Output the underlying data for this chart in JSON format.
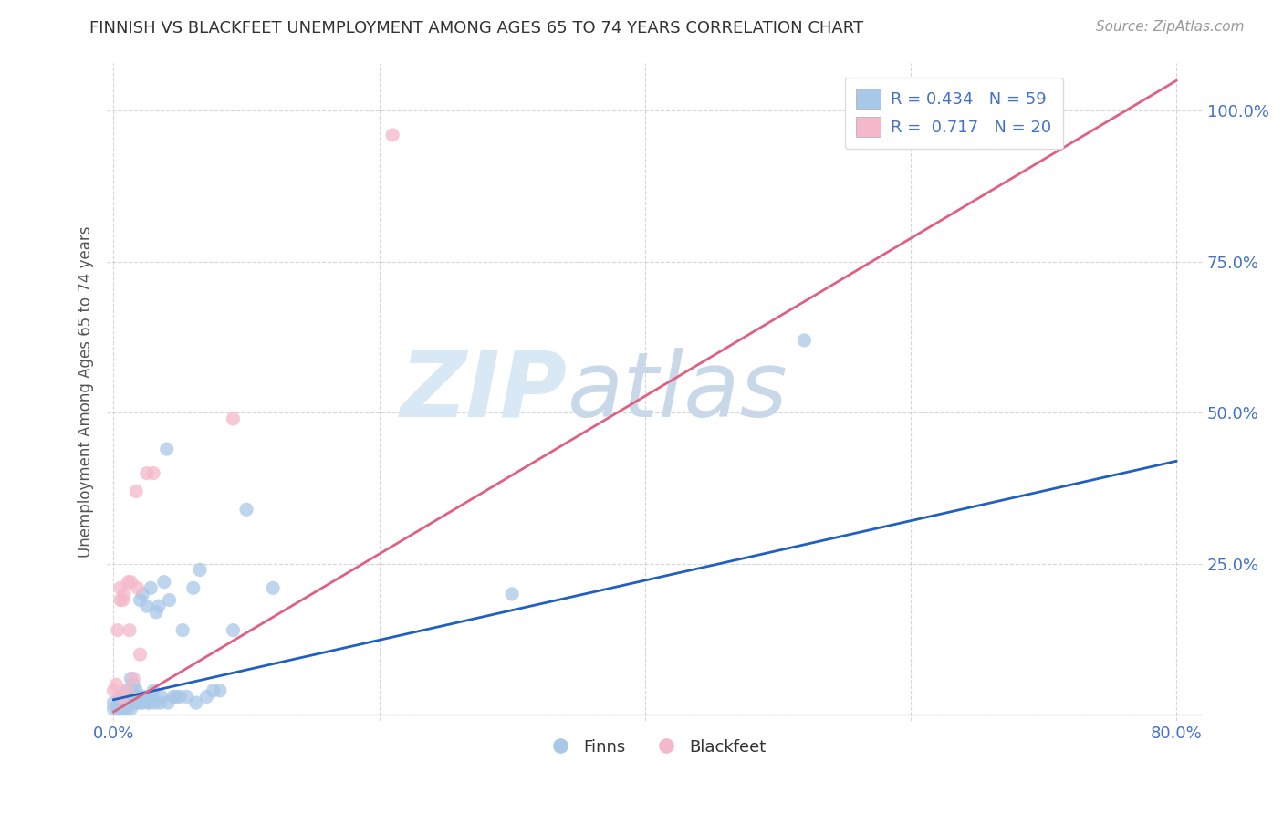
{
  "title": "FINNISH VS BLACKFEET UNEMPLOYMENT AMONG AGES 65 TO 74 YEARS CORRELATION CHART",
  "source": "Source: ZipAtlas.com",
  "ylabel": "Unemployment Among Ages 65 to 74 years",
  "x_tick_labels": [
    "0.0%",
    "",
    "",
    "",
    "80.0%"
  ],
  "x_tick_vals": [
    0.0,
    0.2,
    0.4,
    0.6,
    0.8
  ],
  "y_tick_labels": [
    "",
    "25.0%",
    "50.0%",
    "75.0%",
    "100.0%"
  ],
  "y_tick_vals": [
    0.0,
    0.25,
    0.5,
    0.75,
    1.0
  ],
  "xlim": [
    -0.005,
    0.82
  ],
  "ylim": [
    -0.01,
    1.08
  ],
  "finn_color": "#a8c8e8",
  "blackfeet_color": "#f4b8ca",
  "finn_trend_color": "#2060c0",
  "blackfeet_trend_color": "#e06080",
  "watermark_zip": "ZIP",
  "watermark_atlas": "atlas",
  "watermark_color": "#d8e8f4",
  "legend_finn_label": "R = 0.434   N = 59",
  "legend_blackfeet_label": "R =  0.717   N = 20",
  "background_color": "#ffffff",
  "grid_color": "#cccccc",
  "finn_scatter_x": [
    0.0,
    0.0,
    0.003,
    0.005,
    0.005,
    0.005,
    0.007,
    0.008,
    0.008,
    0.009,
    0.01,
    0.01,
    0.012,
    0.012,
    0.013,
    0.013,
    0.015,
    0.015,
    0.016,
    0.017,
    0.018,
    0.018,
    0.02,
    0.02,
    0.021,
    0.022,
    0.022,
    0.025,
    0.025,
    0.026,
    0.027,
    0.028,
    0.029,
    0.03,
    0.031,
    0.032,
    0.034,
    0.035,
    0.036,
    0.038,
    0.04,
    0.041,
    0.042,
    0.045,
    0.047,
    0.05,
    0.052,
    0.055,
    0.06,
    0.062,
    0.065,
    0.07,
    0.075,
    0.08,
    0.09,
    0.1,
    0.12,
    0.3,
    0.52
  ],
  "finn_scatter_y": [
    0.01,
    0.02,
    0.01,
    0.01,
    0.02,
    0.03,
    0.01,
    0.02,
    0.03,
    0.03,
    0.01,
    0.04,
    0.02,
    0.02,
    0.01,
    0.06,
    0.02,
    0.05,
    0.02,
    0.04,
    0.02,
    0.03,
    0.02,
    0.19,
    0.03,
    0.02,
    0.2,
    0.03,
    0.18,
    0.02,
    0.02,
    0.21,
    0.03,
    0.04,
    0.02,
    0.17,
    0.18,
    0.02,
    0.03,
    0.22,
    0.44,
    0.02,
    0.19,
    0.03,
    0.03,
    0.03,
    0.14,
    0.03,
    0.21,
    0.02,
    0.24,
    0.03,
    0.04,
    0.04,
    0.14,
    0.34,
    0.21,
    0.2,
    0.62
  ],
  "blackfeet_scatter_x": [
    0.0,
    0.002,
    0.003,
    0.005,
    0.005,
    0.006,
    0.007,
    0.008,
    0.01,
    0.011,
    0.012,
    0.013,
    0.015,
    0.017,
    0.018,
    0.02,
    0.025,
    0.03,
    0.09,
    0.21
  ],
  "blackfeet_scatter_y": [
    0.04,
    0.05,
    0.14,
    0.19,
    0.21,
    0.03,
    0.19,
    0.2,
    0.04,
    0.22,
    0.14,
    0.22,
    0.06,
    0.37,
    0.21,
    0.1,
    0.4,
    0.4,
    0.49,
    0.96
  ],
  "finn_trend_x": [
    0.0,
    0.8
  ],
  "finn_trend_y": [
    0.025,
    0.42
  ],
  "blackfeet_trend_x": [
    0.0,
    0.8
  ],
  "blackfeet_trend_y": [
    0.005,
    1.05
  ]
}
